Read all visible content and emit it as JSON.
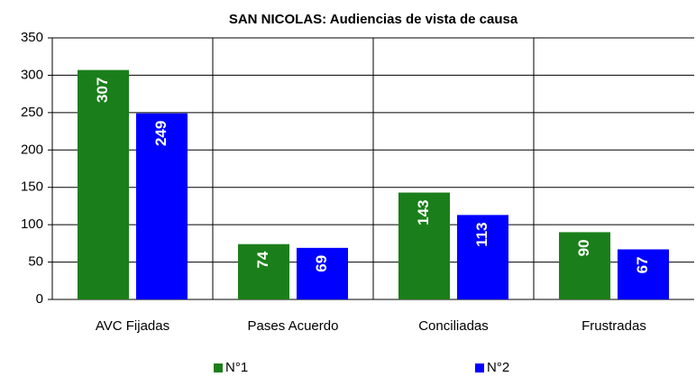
{
  "chart_data": {
    "type": "bar",
    "title": "SAN NICOLAS: Audiencias de vista de causa",
    "categories": [
      "AVC Fijadas",
      "Pases Acuerdo",
      "Conciliadas",
      "Frustradas"
    ],
    "series": [
      {
        "name": "N°1",
        "color": "#1a7f1a",
        "values": [
          307,
          74,
          143,
          90
        ]
      },
      {
        "name": "N°2",
        "color": "#0000ff",
        "values": [
          249,
          69,
          113,
          67
        ]
      }
    ],
    "ylim": [
      0,
      350
    ],
    "yticks": [
      0,
      50,
      100,
      150,
      200,
      250,
      300,
      350
    ],
    "grid": true,
    "legend": "bottom"
  }
}
